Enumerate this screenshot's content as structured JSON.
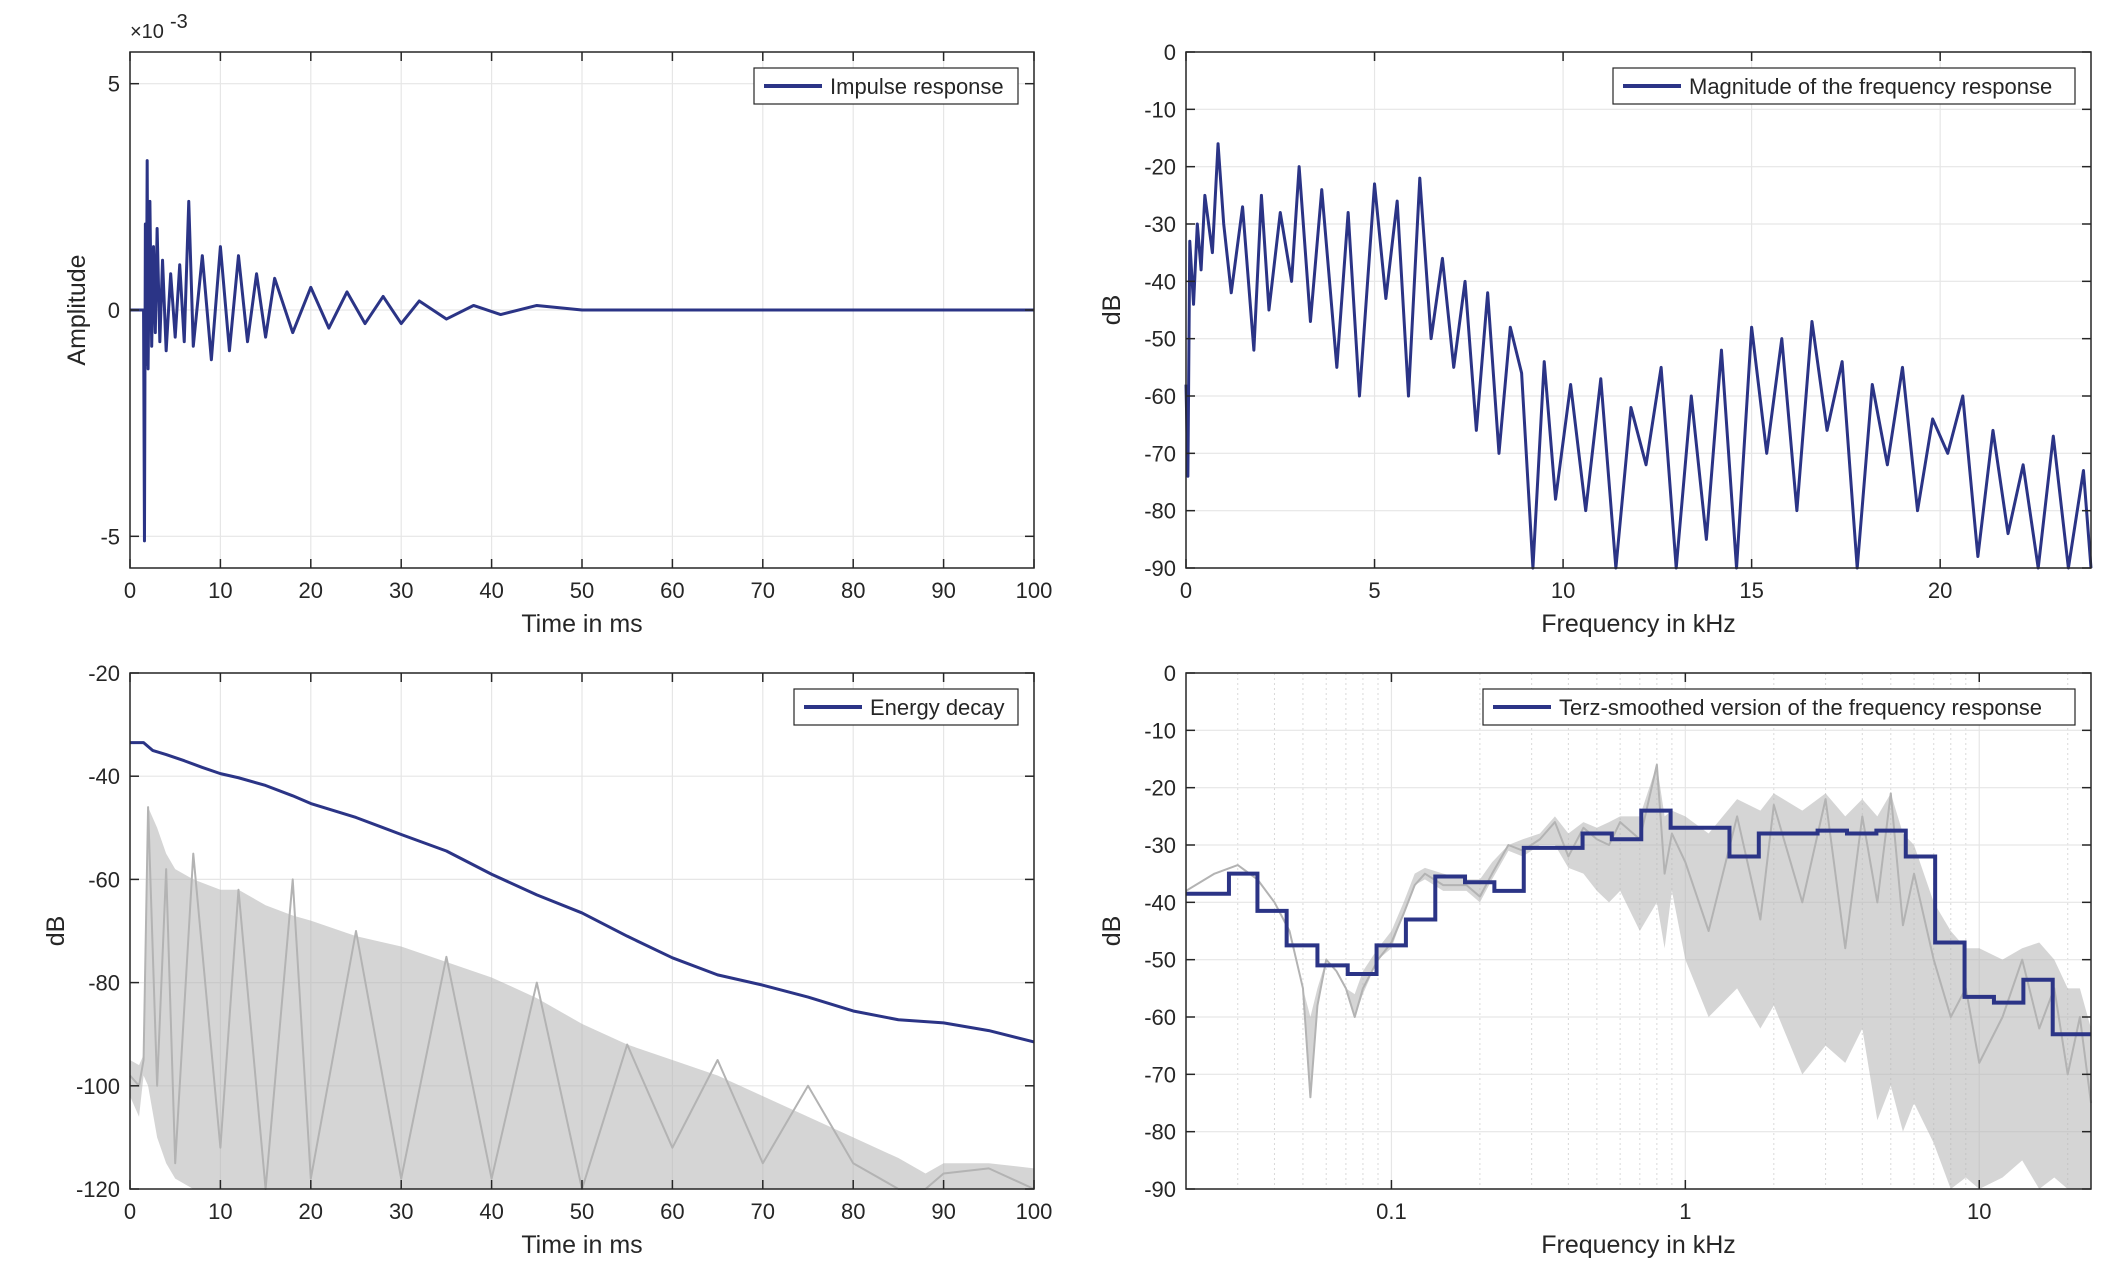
{
  "chart_data": [
    {
      "id": "impulse",
      "type": "line",
      "title": "",
      "xlabel": "Time in ms",
      "ylabel": "Amplitude",
      "xlim": [
        0,
        100
      ],
      "ylim": [
        -0.0057,
        0.0057
      ],
      "xscale": "linear",
      "xticks": [
        0,
        10,
        20,
        30,
        40,
        50,
        60,
        70,
        80,
        90,
        100
      ],
      "xtick_labels": [
        "0",
        "10",
        "20",
        "30",
        "40",
        "50",
        "60",
        "70",
        "80",
        "90",
        "100"
      ],
      "yticks": [
        -0.005,
        0,
        0.005
      ],
      "ytick_labels": [
        "-5",
        "0",
        "5"
      ],
      "y_exponent_label": "×10",
      "y_exponent_power": "-3",
      "grid": true,
      "legend_position": "top-right",
      "series": [
        {
          "name": "Impulse response",
          "color": "#2b3486",
          "x": [
            0,
            1.5,
            1.6,
            1.7,
            1.8,
            1.9,
            2.0,
            2.2,
            2.4,
            2.6,
            2.8,
            3.0,
            3.3,
            3.6,
            4.0,
            4.5,
            5.0,
            5.5,
            6.0,
            6.5,
            7.0,
            8.0,
            9.0,
            10.0,
            11.0,
            12.0,
            13.0,
            14.0,
            15.0,
            16.0,
            18.0,
            20.0,
            22.0,
            24.0,
            26.0,
            28.0,
            30.0,
            32.0,
            35.0,
            38.0,
            41.0,
            45.0,
            50.0,
            60.0,
            70.0,
            80.0,
            90.0,
            100.0
          ],
          "y": [
            0,
            0,
            -0.0051,
            0.0019,
            -0.0012,
            0.0033,
            -0.0013,
            0.0024,
            -0.0008,
            0.0014,
            -0.0005,
            0.0018,
            -0.0007,
            0.0011,
            -0.0009,
            0.0008,
            -0.0006,
            0.001,
            -0.0007,
            0.0024,
            -0.0008,
            0.0012,
            -0.0011,
            0.0014,
            -0.0009,
            0.0012,
            -0.0007,
            0.0008,
            -0.0006,
            0.0007,
            -0.0005,
            0.0005,
            -0.0004,
            0.0004,
            -0.0003,
            0.0003,
            -0.0003,
            0.0002,
            -0.0002,
            0.0001,
            -0.0001,
            0.0001,
            0,
            0,
            0,
            0,
            0,
            0
          ]
        }
      ]
    },
    {
      "id": "magnitude",
      "type": "line",
      "title": "",
      "xlabel": "Frequency in kHz",
      "ylabel": "dB",
      "xlim": [
        0,
        24
      ],
      "ylim": [
        -90,
        0
      ],
      "xscale": "linear",
      "xticks": [
        0,
        5,
        10,
        15,
        20
      ],
      "xtick_labels": [
        "0",
        "5",
        "10",
        "15",
        "20"
      ],
      "yticks": [
        -90,
        -80,
        -70,
        -60,
        -50,
        -40,
        -30,
        -20,
        -10,
        0
      ],
      "ytick_labels": [
        "-90",
        "-80",
        "-70",
        "-60",
        "-50",
        "-40",
        "-30",
        "-20",
        "-10",
        "0"
      ],
      "grid": true,
      "legend_position": "top-right",
      "series": [
        {
          "name": "Magnitude of the frequency response",
          "color": "#2b3486",
          "x": [
            0,
            0.05,
            0.1,
            0.2,
            0.3,
            0.4,
            0.5,
            0.7,
            0.85,
            1.0,
            1.2,
            1.5,
            1.8,
            2.0,
            2.2,
            2.5,
            2.8,
            3.0,
            3.3,
            3.6,
            4.0,
            4.3,
            4.6,
            5.0,
            5.3,
            5.6,
            5.9,
            6.2,
            6.5,
            6.8,
            7.1,
            7.4,
            7.7,
            8.0,
            8.3,
            8.6,
            8.9,
            9.2,
            9.5,
            9.8,
            10.2,
            10.6,
            11.0,
            11.4,
            11.8,
            12.2,
            12.6,
            13.0,
            13.4,
            13.8,
            14.2,
            14.6,
            15.0,
            15.4,
            15.8,
            16.2,
            16.6,
            17.0,
            17.4,
            17.8,
            18.2,
            18.6,
            19.0,
            19.4,
            19.8,
            20.2,
            20.6,
            21.0,
            21.4,
            21.8,
            22.2,
            22.6,
            23.0,
            23.4,
            23.8,
            24.0
          ],
          "y": [
            -58,
            -74,
            -33,
            -44,
            -30,
            -38,
            -25,
            -35,
            -16,
            -30,
            -42,
            -27,
            -52,
            -25,
            -45,
            -28,
            -40,
            -20,
            -47,
            -24,
            -55,
            -28,
            -60,
            -23,
            -43,
            -26,
            -60,
            -22,
            -50,
            -36,
            -55,
            -40,
            -66,
            -42,
            -70,
            -48,
            -56,
            -90,
            -54,
            -78,
            -58,
            -80,
            -57,
            -90,
            -62,
            -72,
            -55,
            -90,
            -60,
            -85,
            -52,
            -90,
            -48,
            -70,
            -50,
            -80,
            -47,
            -66,
            -54,
            -90,
            -58,
            -72,
            -55,
            -80,
            -64,
            -70,
            -60,
            -88,
            -66,
            -84,
            -72,
            -90,
            -67,
            -90,
            -73,
            -90
          ]
        }
      ]
    },
    {
      "id": "decay",
      "type": "line",
      "title": "",
      "xlabel": "Time in ms",
      "ylabel": "dB",
      "xlim": [
        0,
        100
      ],
      "ylim": [
        -120,
        -20
      ],
      "xscale": "linear",
      "xticks": [
        0,
        10,
        20,
        30,
        40,
        50,
        60,
        70,
        80,
        90,
        100
      ],
      "xtick_labels": [
        "0",
        "10",
        "20",
        "30",
        "40",
        "50",
        "60",
        "70",
        "80",
        "90",
        "100"
      ],
      "yticks": [
        -120,
        -100,
        -80,
        -60,
        -40,
        -20
      ],
      "ytick_labels": [
        "-120",
        "-100",
        "-80",
        "-60",
        "-40",
        "-20"
      ],
      "grid": true,
      "legend_position": "top-right",
      "series": [
        {
          "name": "",
          "color": "#b3b3b3",
          "x": [
            0,
            1,
            1.5,
            2,
            3,
            4,
            5,
            7,
            10,
            12,
            15,
            18,
            20,
            25,
            30,
            35,
            40,
            45,
            50,
            55,
            60,
            65,
            70,
            75,
            80,
            85,
            88,
            90,
            95,
            100
          ],
          "y": [
            -98,
            -100,
            -95,
            -46,
            -100,
            -58,
            -115,
            -55,
            -112,
            -62,
            -120,
            -60,
            -118,
            -70,
            -118,
            -75,
            -118,
            -80,
            -120,
            -92,
            -112,
            -95,
            -115,
            -100,
            -115,
            -120,
            -120,
            -117,
            -116,
            -121
          ],
          "upper": [
            -95,
            -96,
            -94,
            -46,
            -50,
            -55,
            -58,
            -60,
            -62,
            -62,
            -65,
            -67,
            -68,
            -71,
            -73,
            -76,
            -79,
            -83,
            -88,
            -92,
            -95,
            -98,
            -102,
            -106,
            -110,
            -114,
            -117,
            -115,
            -115,
            -116
          ],
          "lower": [
            -102,
            -106,
            -98,
            -100,
            -110,
            -115,
            -118,
            -120,
            -120,
            -120,
            -120,
            -120,
            -120,
            -120,
            -120,
            -120,
            -120,
            -120,
            -120,
            -120,
            -120,
            -120,
            -120,
            -120,
            -120,
            -120,
            -120,
            -122,
            -122,
            -122
          ]
        },
        {
          "name": "Energy decay",
          "color": "#2b3486",
          "x": [
            0,
            1.5,
            2.5,
            4,
            6,
            8,
            10,
            12,
            15,
            18,
            20,
            25,
            30,
            35,
            40,
            45,
            50,
            55,
            60,
            65,
            70,
            75,
            80,
            85,
            90,
            95,
            100
          ],
          "y": [
            -33.5,
            -33.5,
            -35,
            -35.8,
            -37,
            -38.3,
            -39.5,
            -40.3,
            -41.8,
            -43.8,
            -45.3,
            -48,
            -51.3,
            -54.5,
            -59,
            -63,
            -66.5,
            -71,
            -75.2,
            -78.5,
            -80.5,
            -82.8,
            -85.5,
            -87.2,
            -87.8,
            -89.3,
            -91.5
          ]
        }
      ]
    },
    {
      "id": "terz",
      "type": "line",
      "title": "",
      "xlabel": "Frequency in kHz",
      "ylabel": "dB",
      "xlim": [
        0.02,
        24
      ],
      "ylim": [
        -90,
        0
      ],
      "xscale": "log",
      "xticks": [
        0.1,
        1,
        10
      ],
      "xtick_labels": [
        "0.1",
        "1",
        "10"
      ],
      "yticks": [
        -90,
        -80,
        -70,
        -60,
        -50,
        -40,
        -30,
        -20,
        -10,
        0
      ],
      "ytick_labels": [
        "-90",
        "-80",
        "-70",
        "-60",
        "-50",
        "-40",
        "-30",
        "-20",
        "-10",
        "0"
      ],
      "grid": true,
      "legend_position": "top-right",
      "series": [
        {
          "name": "",
          "color": "#b3b3b3",
          "x": [
            0.02,
            0.025,
            0.03,
            0.035,
            0.04,
            0.045,
            0.05,
            0.053,
            0.056,
            0.06,
            0.065,
            0.07,
            0.075,
            0.08,
            0.09,
            0.1,
            0.11,
            0.12,
            0.13,
            0.15,
            0.18,
            0.2,
            0.22,
            0.25,
            0.28,
            0.32,
            0.36,
            0.4,
            0.45,
            0.5,
            0.55,
            0.6,
            0.7,
            0.8,
            0.85,
            0.9,
            1.0,
            1.2,
            1.5,
            1.8,
            2.0,
            2.5,
            3.0,
            3.5,
            4.0,
            4.5,
            5.0,
            5.5,
            6.0,
            7.0,
            8.0,
            9.0,
            10.0,
            12.0,
            14.0,
            16.0,
            18.0,
            20.0,
            22.0,
            24.0
          ],
          "y": [
            -38,
            -35,
            -33.5,
            -36,
            -40,
            -45,
            -55,
            -74,
            -58,
            -50,
            -52,
            -55,
            -60,
            -55,
            -50,
            -47,
            -42,
            -37,
            -35,
            -37,
            -37,
            -39,
            -35,
            -30,
            -31,
            -29,
            -26,
            -32,
            -27,
            -29,
            -30,
            -26,
            -29,
            -16,
            -35,
            -28,
            -33,
            -45,
            -25,
            -43,
            -23,
            -40,
            -22,
            -48,
            -25,
            -40,
            -21,
            -44,
            -35,
            -50,
            -60,
            -55,
            -68,
            -60,
            -50,
            -62,
            -55,
            -70,
            -60,
            -75
          ],
          "upper": [
            -38,
            -35,
            -33.5,
            -36,
            -40,
            -45,
            -55,
            -60,
            -55,
            -50,
            -52,
            -55,
            -56,
            -52,
            -48,
            -45,
            -40,
            -35,
            -34,
            -35,
            -36,
            -36,
            -33,
            -30,
            -29,
            -28,
            -25,
            -28,
            -26,
            -27,
            -26,
            -25,
            -25,
            -16,
            -25,
            -24,
            -25,
            -28,
            -22,
            -24,
            -21,
            -24,
            -21,
            -25,
            -22,
            -25,
            -21,
            -28,
            -30,
            -40,
            -45,
            -48,
            -48,
            -50,
            -48,
            -47,
            -50,
            -55,
            -55,
            -62
          ],
          "lower": [
            -38,
            -35,
            -33.5,
            -36,
            -40,
            -45,
            -55,
            -74,
            -58,
            -50,
            -52,
            -55,
            -60,
            -56,
            -50,
            -48,
            -42,
            -37,
            -36,
            -38,
            -38,
            -40,
            -36,
            -31,
            -32,
            -30,
            -30,
            -34,
            -35,
            -38,
            -40,
            -38,
            -45,
            -40,
            -48,
            -38,
            -50,
            -60,
            -55,
            -62,
            -58,
            -70,
            -65,
            -68,
            -62,
            -78,
            -72,
            -80,
            -75,
            -82,
            -90,
            -88,
            -90,
            -88,
            -85,
            -90,
            -88,
            -90,
            -90,
            -90
          ]
        },
        {
          "name": "Terz-smoothed version of the frequency response",
          "color": "#2b3486",
          "step_edges": [
            0.02,
            0.028,
            0.035,
            0.044,
            0.056,
            0.071,
            0.089,
            0.112,
            0.141,
            0.178,
            0.224,
            0.282,
            0.355,
            0.447,
            0.562,
            0.708,
            0.891,
            1.122,
            1.413,
            1.778,
            2.239,
            2.818,
            3.548,
            4.467,
            5.623,
            7.079,
            8.913,
            11.22,
            14.13,
            17.78,
            24.0
          ],
          "values": [
            -38.5,
            -35,
            -41.5,
            -47.5,
            -51,
            -52.5,
            -47.5,
            -43,
            -35.5,
            -36.5,
            -38,
            -30.5,
            -30.5,
            -28,
            -29,
            -24,
            -27,
            -27,
            -32,
            -28,
            -28,
            -27.5,
            -28,
            -27.5,
            -32,
            -47,
            -56.5,
            -57.5,
            -53.5,
            -63
          ]
        }
      ]
    }
  ]
}
